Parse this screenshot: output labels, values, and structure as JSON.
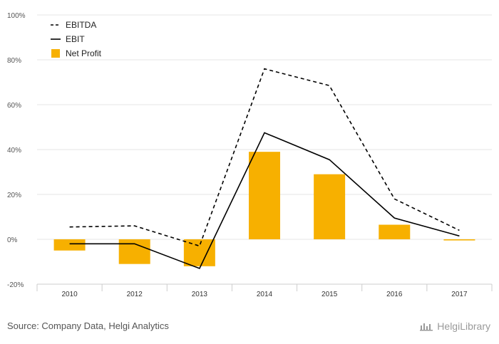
{
  "chart_data": {
    "type": "bar",
    "categories": [
      "2010",
      "2012",
      "2013",
      "2014",
      "2015",
      "2016",
      "2017"
    ],
    "series": [
      {
        "name": "EBITDA",
        "kind": "line",
        "style": "dashed",
        "values": [
          5.5,
          6.0,
          -3.0,
          76.0,
          68.5,
          18.0,
          4.0
        ]
      },
      {
        "name": "EBIT",
        "kind": "line",
        "style": "solid",
        "values": [
          -2.0,
          -2.0,
          -13.0,
          47.5,
          35.5,
          9.5,
          1.5
        ]
      },
      {
        "name": "Net Profit",
        "kind": "bar",
        "values": [
          -5.0,
          -11.0,
          -12.0,
          39.0,
          29.0,
          6.5,
          -0.5
        ]
      }
    ],
    "ylim": [
      -20,
      100
    ],
    "yticks": [
      "-20%",
      "0%",
      "20%",
      "40%",
      "60%",
      "80%",
      "100%"
    ],
    "ytick_values": [
      -20,
      0,
      20,
      40,
      60,
      80,
      100
    ],
    "grid": true,
    "legend_position": "top-left",
    "colors": {
      "EBITDA": "#000000",
      "EBIT": "#000000",
      "Net Profit": "#f7b000"
    }
  },
  "footer": {
    "source": "Source: Company Data, Helgi Analytics",
    "brand": "HelgiLibrary",
    "brand_icon": "helgi-logo-icon"
  }
}
